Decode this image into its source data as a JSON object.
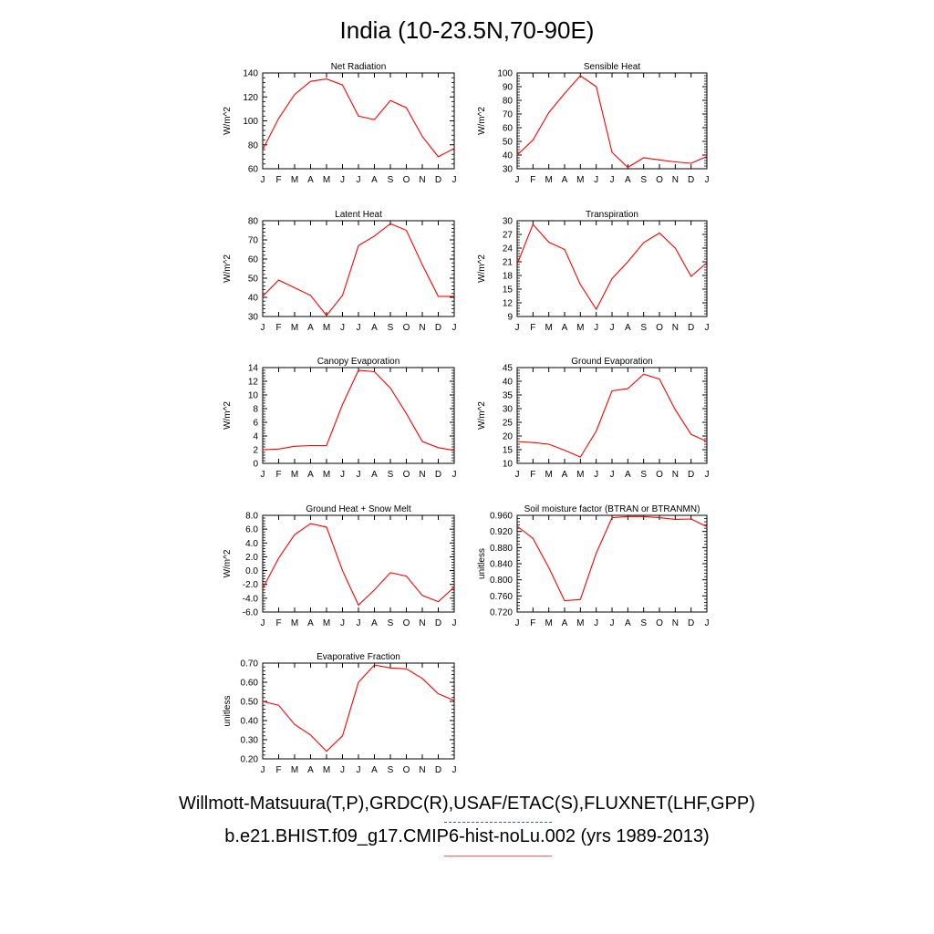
{
  "title": "India (10-23.5N,70-90E)",
  "legend": {
    "observations": "Willmott-Matsuura(T,P),GRDC(R),USAF/ETAC(S),FLUXNET(LHF,GPP)",
    "model": "b.e21.BHIST.f09_g17.CMIP6-hist-noLu.002 (yrs 1989-2013)",
    "observations_color": "#5050e0",
    "model_color": "#ff0000"
  },
  "chart_data": [
    {
      "type": "line",
      "title": "Net Radiation",
      "ylabel": "W/m^2",
      "ylim": [
        60,
        140
      ],
      "yticks": [
        "60",
        "80",
        "100",
        "120",
        "140"
      ],
      "categories": [
        "J",
        "F",
        "M",
        "A",
        "M",
        "J",
        "J",
        "A",
        "S",
        "O",
        "N",
        "D",
        "J"
      ],
      "series": [
        {
          "values": [
            76,
            102,
            122,
            133,
            135,
            130,
            104,
            101,
            117,
            111,
            87,
            70,
            77
          ]
        }
      ]
    },
    {
      "type": "line",
      "title": "Sensible Heat",
      "ylabel": "W/m^2",
      "ylim": [
        30,
        100
      ],
      "yticks": [
        "30",
        "40",
        "50",
        "60",
        "70",
        "80",
        "90",
        "100"
      ],
      "categories": [
        "J",
        "F",
        "M",
        "A",
        "M",
        "J",
        "J",
        "A",
        "S",
        "O",
        "N",
        "D",
        "J"
      ],
      "series": [
        {
          "values": [
            40,
            51,
            71,
            85,
            98,
            90,
            42,
            31,
            38,
            36.5,
            35,
            34,
            39
          ]
        }
      ]
    },
    {
      "type": "line",
      "title": "Latent Heat",
      "ylabel": "W/m^2",
      "ylim": [
        30,
        80
      ],
      "yticks": [
        "30",
        "40",
        "50",
        "60",
        "70",
        "80"
      ],
      "categories": [
        "J",
        "F",
        "M",
        "A",
        "M",
        "J",
        "J",
        "A",
        "S",
        "O",
        "N",
        "D",
        "J"
      ],
      "series": [
        {
          "values": [
            40.5,
            49,
            45,
            41,
            30.5,
            41,
            67,
            72,
            78.5,
            75,
            57,
            40.5,
            40.5
          ]
        }
      ]
    },
    {
      "type": "line",
      "title": "Transpiration",
      "ylabel": "W/m^2",
      "ylim": [
        9,
        30
      ],
      "yticks": [
        "9",
        "12",
        "15",
        "18",
        "21",
        "24",
        "27",
        "30"
      ],
      "categories": [
        "J",
        "F",
        "M",
        "A",
        "M",
        "J",
        "J",
        "A",
        "S",
        "O",
        "N",
        "D",
        "J"
      ],
      "series": [
        {
          "values": [
            20.5,
            29.2,
            25.3,
            23.7,
            16,
            10.6,
            17.3,
            21,
            25.2,
            27.3,
            24,
            17.8,
            20.8
          ]
        }
      ]
    },
    {
      "type": "line",
      "title": "Canopy Evaporation",
      "ylabel": "W/m^2",
      "ylim": [
        0,
        14
      ],
      "yticks": [
        "0",
        "2",
        "4",
        "6",
        "8",
        "10",
        "12",
        "14"
      ],
      "categories": [
        "J",
        "F",
        "M",
        "A",
        "M",
        "J",
        "J",
        "A",
        "S",
        "O",
        "N",
        "D",
        "J"
      ],
      "series": [
        {
          "values": [
            2,
            2.1,
            2.5,
            2.6,
            2.6,
            8.6,
            13.6,
            13.4,
            11,
            7.3,
            3.2,
            2.3,
            1.9
          ]
        }
      ]
    },
    {
      "type": "line",
      "title": "Ground Evaporation",
      "ylabel": "W/m^2",
      "ylim": [
        10,
        45
      ],
      "yticks": [
        "10",
        "15",
        "20",
        "25",
        "30",
        "35",
        "40",
        "45"
      ],
      "categories": [
        "J",
        "F",
        "M",
        "A",
        "M",
        "J",
        "J",
        "A",
        "S",
        "O",
        "N",
        "D",
        "J"
      ],
      "series": [
        {
          "values": [
            18,
            17.6,
            17,
            14.8,
            12.3,
            21.8,
            36.5,
            37.3,
            42.6,
            40.8,
            29.6,
            20.6,
            18
          ]
        }
      ]
    },
    {
      "type": "line",
      "title": "Ground Heat + Snow Melt",
      "ylabel": "W/m^2",
      "ylim": [
        -6,
        8
      ],
      "yticks": [
        "-6.0",
        "-4.0",
        "-2.0",
        "0.0",
        "2.0",
        "4.0",
        "6.0",
        "8.0"
      ],
      "categories": [
        "J",
        "F",
        "M",
        "A",
        "M",
        "J",
        "J",
        "A",
        "S",
        "O",
        "N",
        "D",
        "J"
      ],
      "series": [
        {
          "values": [
            -2.6,
            1.8,
            5.2,
            6.8,
            6.3,
            0,
            -5,
            -2.8,
            -0.3,
            -0.8,
            -3.6,
            -4.5,
            -2.4
          ]
        }
      ]
    },
    {
      "type": "line",
      "title": "Soil moisture factor (BTRAN or BTRANMN)",
      "ylabel": "unitless",
      "ylim": [
        0.72,
        0.96
      ],
      "yticks": [
        "0.720",
        "0.760",
        "0.800",
        "0.840",
        "0.880",
        "0.920",
        "0.960"
      ],
      "categories": [
        "J",
        "F",
        "M",
        "A",
        "M",
        "J",
        "J",
        "A",
        "S",
        "O",
        "N",
        "D",
        "J"
      ],
      "series": [
        {
          "values": [
            0.933,
            0.903,
            0.83,
            0.748,
            0.751,
            0.866,
            0.954,
            0.957,
            0.957,
            0.954,
            0.95,
            0.951,
            0.932
          ]
        }
      ]
    },
    {
      "type": "line",
      "title": "Evaporative Fraction",
      "ylabel": "unitless",
      "ylim": [
        0.2,
        0.7
      ],
      "yticks": [
        "0.20",
        "0.30",
        "0.40",
        "0.50",
        "0.60",
        "0.70"
      ],
      "categories": [
        "J",
        "F",
        "M",
        "A",
        "M",
        "J",
        "J",
        "A",
        "S",
        "O",
        "N",
        "D",
        "J"
      ],
      "series": [
        {
          "values": [
            0.5,
            0.48,
            0.38,
            0.325,
            0.24,
            0.32,
            0.6,
            0.69,
            0.675,
            0.67,
            0.62,
            0.54,
            0.505
          ]
        }
      ]
    }
  ]
}
